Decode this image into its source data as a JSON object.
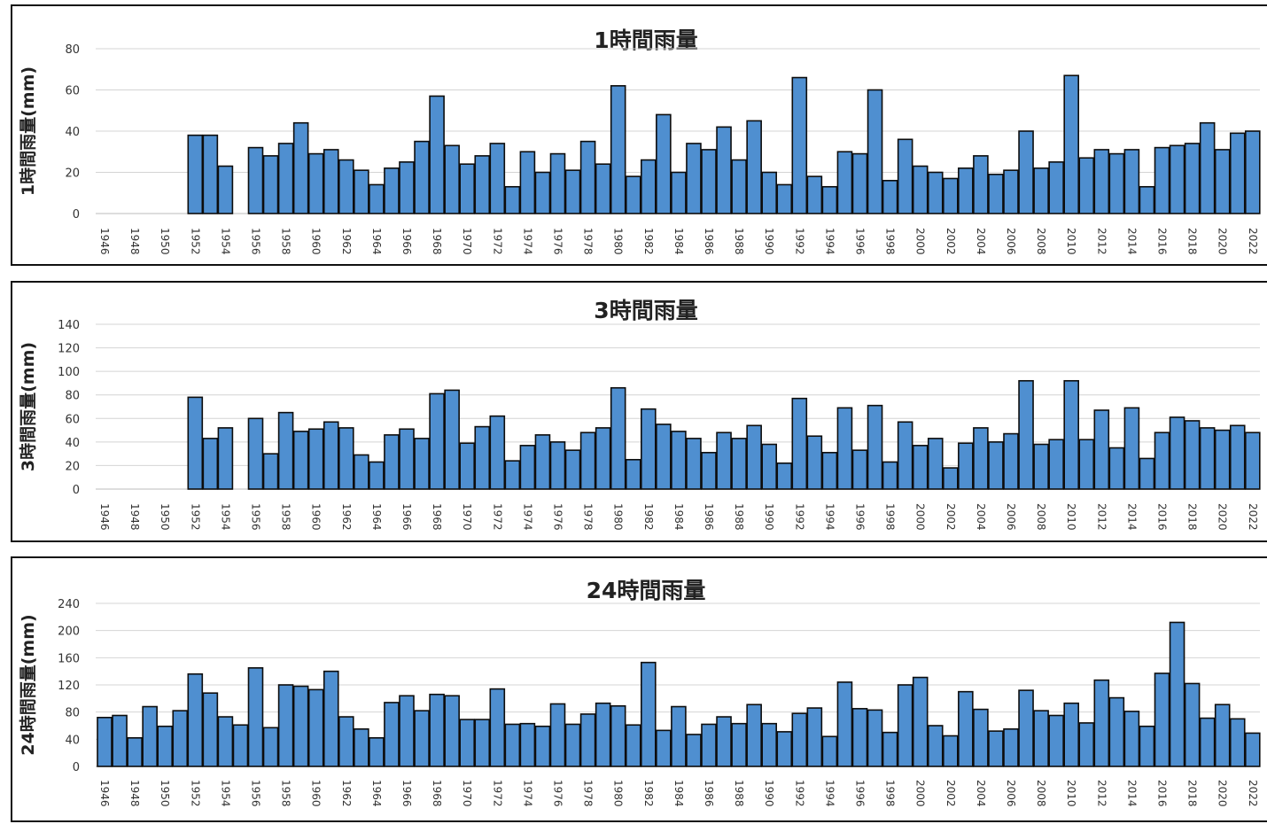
{
  "chart_data": [
    {
      "type": "bar",
      "title": "1時間雨量",
      "ylabel": "1時間雨量(mm)",
      "xlabel": "",
      "ylim": [
        0,
        80
      ],
      "yticks": [
        0,
        20,
        40,
        60,
        80
      ],
      "grid": true,
      "color": "#4f8fd0",
      "categories": [
        "1946",
        "1947",
        "1948",
        "1949",
        "1950",
        "1951",
        "1952",
        "1953",
        "1954",
        "1955",
        "1956",
        "1957",
        "1958",
        "1959",
        "1960",
        "1961",
        "1962",
        "1963",
        "1964",
        "1965",
        "1966",
        "1967",
        "1968",
        "1969",
        "1970",
        "1971",
        "1972",
        "1973",
        "1974",
        "1975",
        "1976",
        "1977",
        "1978",
        "1979",
        "1980",
        "1981",
        "1982",
        "1983",
        "1984",
        "1985",
        "1986",
        "1987",
        "1988",
        "1989",
        "1990",
        "1991",
        "1992",
        "1993",
        "1994",
        "1995",
        "1996",
        "1997",
        "1998",
        "1999",
        "2000",
        "2001",
        "2002",
        "2003",
        "2004",
        "2005",
        "2006",
        "2007",
        "2008",
        "2009",
        "2010",
        "2011",
        "2012",
        "2013",
        "2014",
        "2015",
        "2016",
        "2017",
        "2018",
        "2019",
        "2020",
        "2021",
        "2022"
      ],
      "tick_labels": [
        "1946",
        "",
        "1948",
        "",
        "1950",
        "",
        "1952",
        "",
        "1954",
        "",
        "1956",
        "",
        "1958",
        "",
        "1960",
        "",
        "1962",
        "",
        "1964",
        "",
        "1966",
        "",
        "1968",
        "",
        "1970",
        "",
        "1972",
        "",
        "1974",
        "",
        "1976",
        "",
        "1978",
        "",
        "1980",
        "",
        "1982",
        "",
        "1984",
        "",
        "1986",
        "",
        "1988",
        "",
        "1990",
        "",
        "1992",
        "",
        "1994",
        "",
        "1996",
        "",
        "1998",
        "",
        "2000",
        "",
        "2002",
        "",
        "2004",
        "",
        "2006",
        "",
        "2008",
        "",
        "2010",
        "",
        "2012",
        "",
        "2014",
        "",
        "2016",
        "",
        "2018",
        "",
        "2020",
        "",
        "2022"
      ],
      "values": [
        null,
        null,
        null,
        null,
        null,
        null,
        38,
        38,
        23,
        null,
        32,
        28,
        34,
        44,
        29,
        31,
        26,
        21,
        14,
        22,
        25,
        35,
        57,
        33,
        24,
        28,
        34,
        13,
        30,
        20,
        29,
        21,
        35,
        24,
        62,
        18,
        26,
        48,
        20,
        34,
        31,
        42,
        26,
        45,
        20,
        14,
        66,
        18,
        13,
        30,
        29,
        60,
        16,
        36,
        23,
        20,
        17,
        22,
        28,
        19,
        21,
        40,
        22,
        25,
        67,
        27,
        31,
        29,
        31,
        13,
        32,
        33,
        34,
        44,
        31,
        39,
        40
      ]
    },
    {
      "type": "bar",
      "title": "3時間雨量",
      "ylabel": "3時間雨量(mm)",
      "xlabel": "",
      "ylim": [
        0,
        140
      ],
      "yticks": [
        0,
        20,
        40,
        60,
        80,
        100,
        120,
        140
      ],
      "grid": true,
      "color": "#4f8fd0",
      "categories": [
        "1946",
        "1947",
        "1948",
        "1949",
        "1950",
        "1951",
        "1952",
        "1953",
        "1954",
        "1955",
        "1956",
        "1957",
        "1958",
        "1959",
        "1960",
        "1961",
        "1962",
        "1963",
        "1964",
        "1965",
        "1966",
        "1967",
        "1968",
        "1969",
        "1970",
        "1971",
        "1972",
        "1973",
        "1974",
        "1975",
        "1976",
        "1977",
        "1978",
        "1979",
        "1980",
        "1981",
        "1982",
        "1983",
        "1984",
        "1985",
        "1986",
        "1987",
        "1988",
        "1989",
        "1990",
        "1991",
        "1992",
        "1993",
        "1994",
        "1995",
        "1996",
        "1997",
        "1998",
        "1999",
        "2000",
        "2001",
        "2002",
        "2003",
        "2004",
        "2005",
        "2006",
        "2007",
        "2008",
        "2009",
        "2010",
        "2011",
        "2012",
        "2013",
        "2014",
        "2015",
        "2016",
        "2017",
        "2018",
        "2019",
        "2020",
        "2021",
        "2022"
      ],
      "tick_labels": [
        "1946",
        "",
        "1948",
        "",
        "1950",
        "",
        "1952",
        "",
        "1954",
        "",
        "1956",
        "",
        "1958",
        "",
        "1960",
        "",
        "1962",
        "",
        "1964",
        "",
        "1966",
        "",
        "1968",
        "",
        "1970",
        "",
        "1972",
        "",
        "1974",
        "",
        "1976",
        "",
        "1978",
        "",
        "1980",
        "",
        "1982",
        "",
        "1984",
        "",
        "1986",
        "",
        "1988",
        "",
        "1990",
        "",
        "1992",
        "",
        "1994",
        "",
        "1996",
        "",
        "1998",
        "",
        "2000",
        "",
        "2002",
        "",
        "2004",
        "",
        "2006",
        "",
        "2008",
        "",
        "2010",
        "",
        "2012",
        "",
        "2014",
        "",
        "2016",
        "",
        "2018",
        "",
        "2020",
        "",
        "2022"
      ],
      "values": [
        null,
        null,
        null,
        null,
        null,
        null,
        78,
        43,
        52,
        null,
        60,
        30,
        65,
        49,
        51,
        57,
        52,
        29,
        23,
        46,
        51,
        43,
        81,
        84,
        39,
        53,
        62,
        24,
        37,
        46,
        40,
        33,
        48,
        52,
        86,
        25,
        68,
        55,
        49,
        43,
        31,
        48,
        43,
        54,
        38,
        22,
        77,
        45,
        31,
        69,
        33,
        71,
        23,
        57,
        37,
        43,
        18,
        39,
        52,
        40,
        47,
        92,
        38,
        42,
        92,
        42,
        67,
        35,
        69,
        26,
        48,
        61,
        58,
        52,
        50,
        54,
        48
      ]
    },
    {
      "type": "bar",
      "title": "24時間雨量",
      "ylabel": "24時間雨量(mm)",
      "xlabel": "",
      "ylim": [
        0,
        240
      ],
      "yticks": [
        0,
        40,
        80,
        120,
        160,
        200,
        240
      ],
      "grid": true,
      "color": "#4f8fd0",
      "categories": [
        "1946",
        "1947",
        "1948",
        "1949",
        "1950",
        "1951",
        "1952",
        "1953",
        "1954",
        "1955",
        "1956",
        "1957",
        "1958",
        "1959",
        "1960",
        "1961",
        "1962",
        "1963",
        "1964",
        "1965",
        "1966",
        "1967",
        "1968",
        "1969",
        "1970",
        "1971",
        "1972",
        "1973",
        "1974",
        "1975",
        "1976",
        "1977",
        "1978",
        "1979",
        "1980",
        "1981",
        "1982",
        "1983",
        "1984",
        "1985",
        "1986",
        "1987",
        "1988",
        "1989",
        "1990",
        "1991",
        "1992",
        "1993",
        "1994",
        "1995",
        "1996",
        "1997",
        "1998",
        "1999",
        "2000",
        "2001",
        "2002",
        "2003",
        "2004",
        "2005",
        "2006",
        "2007",
        "2008",
        "2009",
        "2010",
        "2011",
        "2012",
        "2013",
        "2014",
        "2015",
        "2016",
        "2017",
        "2018",
        "2019",
        "2020",
        "2021",
        "2022"
      ],
      "tick_labels": [
        "1946",
        "",
        "1948",
        "",
        "1950",
        "",
        "1952",
        "",
        "1954",
        "",
        "1956",
        "",
        "1958",
        "",
        "1960",
        "",
        "1962",
        "",
        "1964",
        "",
        "1966",
        "",
        "1968",
        "",
        "1970",
        "",
        "1972",
        "",
        "1974",
        "",
        "1976",
        "",
        "1978",
        "",
        "1980",
        "",
        "1982",
        "",
        "1984",
        "",
        "1986",
        "",
        "1988",
        "",
        "1990",
        "",
        "1992",
        "",
        "1994",
        "",
        "1996",
        "",
        "1998",
        "",
        "2000",
        "",
        "2002",
        "",
        "2004",
        "",
        "2006",
        "",
        "2008",
        "",
        "2010",
        "",
        "2012",
        "",
        "2014",
        "",
        "2016",
        "",
        "2018",
        "",
        "2020",
        "",
        "2022"
      ],
      "values": [
        72,
        75,
        42,
        88,
        59,
        82,
        136,
        108,
        73,
        61,
        145,
        57,
        120,
        118,
        113,
        140,
        73,
        55,
        42,
        94,
        104,
        82,
        106,
        104,
        69,
        69,
        114,
        62,
        63,
        59,
        92,
        62,
        77,
        93,
        89,
        61,
        153,
        53,
        88,
        47,
        62,
        73,
        63,
        91,
        63,
        51,
        78,
        86,
        44,
        124,
        85,
        83,
        50,
        120,
        131,
        60,
        45,
        110,
        84,
        52,
        55,
        112,
        82,
        75,
        93,
        64,
        127,
        101,
        81,
        59,
        137,
        212,
        122,
        71,
        91,
        70,
        49
      ]
    }
  ]
}
